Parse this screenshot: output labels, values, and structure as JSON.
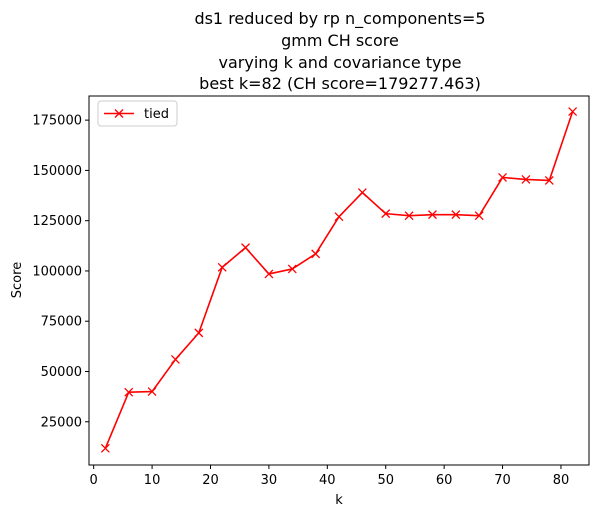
{
  "chart_data": {
    "type": "line",
    "title_lines": [
      "ds1 reduced by rp n_components=5",
      "gmm CH score",
      "varying k and covariance type",
      "best k=82 (CH score=179277.463)"
    ],
    "xlabel": "k",
    "ylabel": "Score",
    "xlim": [
      -0.8,
      84.8
    ],
    "ylim": [
      3500,
      187000
    ],
    "xticks": [
      0,
      10,
      20,
      30,
      40,
      50,
      60,
      70,
      80
    ],
    "yticks": [
      25000,
      50000,
      75000,
      100000,
      125000,
      150000,
      175000
    ],
    "grid": false,
    "legend_position": "upper-left",
    "series": [
      {
        "name": "tied",
        "color": "#ff0000",
        "marker": "x",
        "x": [
          2,
          6,
          10,
          14,
          18,
          22,
          26,
          30,
          34,
          38,
          42,
          46,
          50,
          54,
          58,
          62,
          66,
          70,
          74,
          78,
          82
        ],
        "y": [
          11800,
          39700,
          40000,
          56000,
          69200,
          101800,
          111600,
          98500,
          101000,
          108500,
          127000,
          139000,
          128500,
          127500,
          128000,
          128000,
          127500,
          146500,
          145500,
          145000,
          179277.463
        ]
      }
    ]
  }
}
